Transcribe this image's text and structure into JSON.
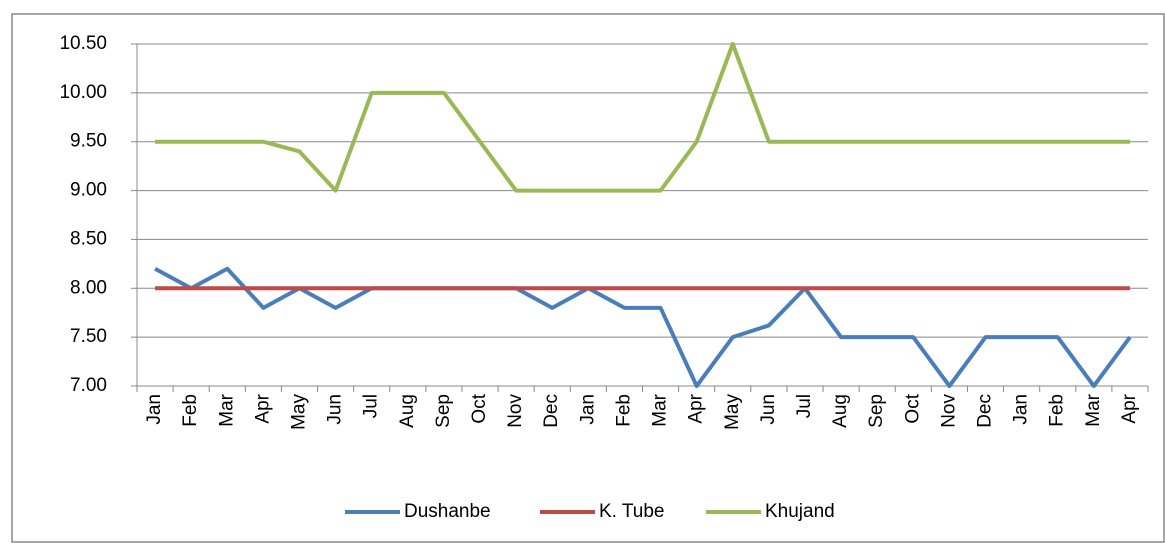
{
  "chart_data": {
    "type": "line",
    "categories": [
      "Jan",
      "Feb",
      "Mar",
      "Apr",
      "May",
      "Jun",
      "Jul",
      "Aug",
      "Sep",
      "Oct",
      "Nov",
      "Dec",
      "Jan",
      "Feb",
      "Mar",
      "Apr",
      "May",
      "Jun",
      "Jul",
      "Aug",
      "Sep",
      "Oct",
      "Nov",
      "Dec",
      "Jan",
      "Feb",
      "Mar",
      "Apr"
    ],
    "series": [
      {
        "name": "Dushanbe",
        "color": "#4a7ebb",
        "values": [
          8.2,
          8.0,
          8.2,
          7.8,
          8.0,
          7.8,
          8.0,
          8.0,
          8.0,
          8.0,
          8.0,
          7.8,
          8.0,
          7.8,
          7.8,
          7.0,
          7.5,
          7.62,
          8.0,
          7.5,
          7.5,
          7.5,
          7.0,
          7.5,
          7.5,
          7.5,
          7.0,
          7.5
        ]
      },
      {
        "name": "K. Tube",
        "color": "#be4b48",
        "values": [
          8,
          8,
          8,
          8,
          8,
          8,
          8,
          8,
          8,
          8,
          8,
          8,
          8,
          8,
          8,
          8,
          8,
          8,
          8,
          8,
          8,
          8,
          8,
          8,
          8,
          8,
          8,
          8
        ]
      },
      {
        "name": "Khujand",
        "color": "#98b954",
        "values": [
          9.5,
          9.5,
          9.5,
          9.5,
          9.4,
          9.0,
          10.0,
          10.0,
          10.0,
          9.5,
          9.0,
          9.0,
          9.0,
          9.0,
          9.0,
          9.5,
          10.5,
          9.5,
          9.5,
          9.5,
          9.5,
          9.5,
          9.5,
          9.5,
          9.5,
          9.5,
          9.5,
          9.5
        ]
      }
    ],
    "ylim": [
      7,
      10.5
    ],
    "yticks": [
      {
        "value": 7,
        "label": "7.00"
      },
      {
        "value": 7.5,
        "label": "7.50"
      },
      {
        "value": 8,
        "label": "8.00"
      },
      {
        "value": 8.5,
        "label": "8.50"
      },
      {
        "value": 9,
        "label": "9.00"
      },
      {
        "value": 9.5,
        "label": "9.50"
      },
      {
        "value": 10,
        "label": "10.00"
      },
      {
        "value": 10.5,
        "label": "10.50"
      }
    ],
    "grid": true,
    "legend": "bottom"
  }
}
